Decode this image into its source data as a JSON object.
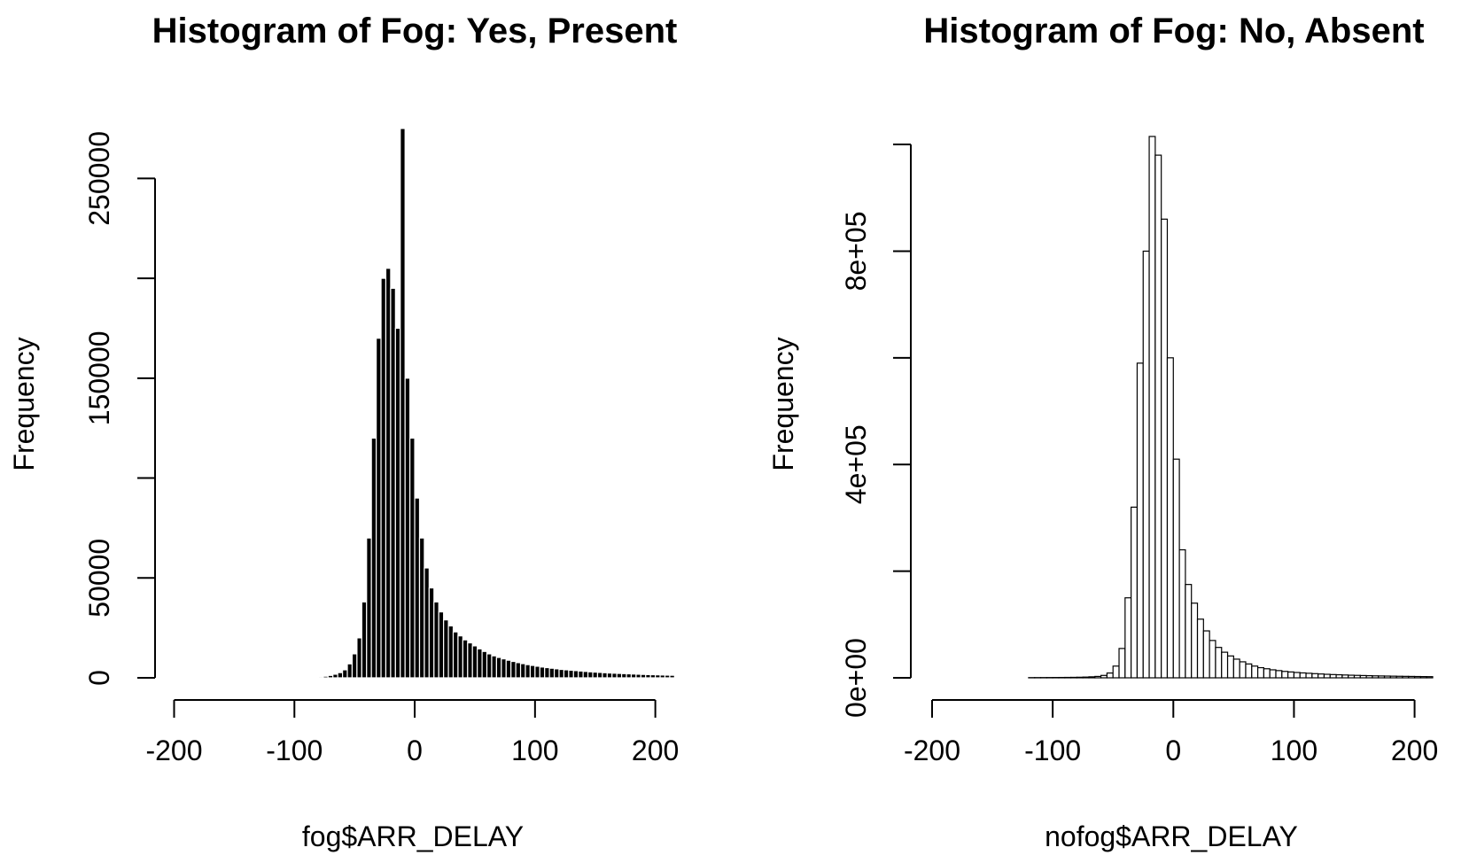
{
  "chart_data": [
    {
      "type": "bar",
      "title": "Histogram of Fog: Yes, Present",
      "xlabel": "fog$ARR_DELAY",
      "ylabel": "Frequency",
      "xlim": [
        -200,
        215
      ],
      "ylim": [
        0,
        275000
      ],
      "bin_width": 4,
      "x_ticks": [
        -200,
        -100,
        0,
        100,
        200
      ],
      "x_tick_labels": [
        "-200",
        "-100",
        "0",
        "100",
        "200"
      ],
      "y_ticks": [
        0,
        50000,
        100000,
        150000,
        200000,
        250000
      ],
      "y_tick_labels": [
        "0",
        "50000",
        "",
        "150000",
        "",
        "250000"
      ],
      "bar_color": "#000000",
      "bar_stroke": "#ffffff",
      "grid": false,
      "x": [
        -102,
        -98,
        -94,
        -90,
        -86,
        -82,
        -78,
        -74,
        -70,
        -66,
        -62,
        -58,
        -54,
        -50,
        -46,
        -42,
        -38,
        -34,
        -30,
        -26,
        -22,
        -18,
        -14,
        -10,
        -6,
        -2,
        2,
        6,
        10,
        14,
        18,
        22,
        26,
        30,
        34,
        38,
        42,
        46,
        50,
        54,
        58,
        62,
        66,
        70,
        74,
        78,
        82,
        86,
        90,
        94,
        98,
        102,
        106,
        110,
        114,
        118,
        122,
        126,
        130,
        134,
        138,
        142,
        146,
        150,
        154,
        158,
        162,
        166,
        170,
        174,
        178,
        182,
        186,
        190,
        194,
        198,
        202,
        206,
        210,
        214
      ],
      "values": [
        50,
        80,
        120,
        180,
        260,
        380,
        550,
        800,
        1200,
        1800,
        2600,
        4000,
        7000,
        12000,
        20000,
        38000,
        70000,
        120000,
        170000,
        200000,
        205000,
        195000,
        175000,
        275000,
        150000,
        120000,
        90000,
        70000,
        55000,
        45000,
        38000,
        33000,
        29000,
        26000,
        23000,
        21000,
        19000,
        17500,
        16000,
        14500,
        13200,
        12000,
        11000,
        10200,
        9500,
        8800,
        8200,
        7600,
        7100,
        6600,
        6200,
        5800,
        5400,
        5100,
        4800,
        4500,
        4200,
        4000,
        3800,
        3600,
        3400,
        3200,
        3000,
        2850,
        2700,
        2550,
        2400,
        2300,
        2200,
        2100,
        2000,
        1900,
        1800,
        1700,
        1620,
        1550,
        1480,
        1400,
        1340,
        1280
      ]
    },
    {
      "type": "bar",
      "title": "Histogram of Fog: No, Absent",
      "xlabel": "nofog$ARR_DELAY",
      "ylabel": "Frequency",
      "xlim": [
        -200,
        215
      ],
      "ylim": [
        0,
        1030000
      ],
      "bin_width": 5,
      "x_ticks": [
        -200,
        -100,
        0,
        100,
        200
      ],
      "x_tick_labels": [
        "-200",
        "-100",
        "0",
        "100",
        "200"
      ],
      "y_ticks": [
        0,
        200000,
        400000,
        600000,
        800000,
        1000000
      ],
      "y_tick_labels": [
        "0e+00",
        "",
        "4e+05",
        "",
        "8e+05",
        ""
      ],
      "bar_color": "#ffffff",
      "bar_stroke": "#000000",
      "grid": false,
      "x": [
        -117.5,
        -112.5,
        -107.5,
        -102.5,
        -97.5,
        -92.5,
        -87.5,
        -82.5,
        -77.5,
        -72.5,
        -67.5,
        -62.5,
        -57.5,
        -52.5,
        -47.5,
        -42.5,
        -37.5,
        -32.5,
        -27.5,
        -22.5,
        -17.5,
        -12.5,
        -7.5,
        -2.5,
        2.5,
        7.5,
        12.5,
        17.5,
        22.5,
        27.5,
        32.5,
        37.5,
        42.5,
        47.5,
        52.5,
        57.5,
        62.5,
        67.5,
        72.5,
        77.5,
        82.5,
        87.5,
        92.5,
        97.5,
        102.5,
        107.5,
        112.5,
        117.5,
        122.5,
        127.5,
        132.5,
        137.5,
        142.5,
        147.5,
        152.5,
        157.5,
        162.5,
        167.5,
        172.5,
        177.5,
        182.5,
        187.5,
        192.5,
        197.5,
        202.5,
        207.5,
        212.5
      ],
      "values": [
        400,
        450,
        500,
        560,
        630,
        700,
        800,
        900,
        1100,
        1400,
        1900,
        2600,
        4500,
        9000,
        22000,
        55000,
        150000,
        320000,
        590000,
        800000,
        1015000,
        980000,
        860000,
        600000,
        410000,
        240000,
        175000,
        140000,
        110000,
        88000,
        70000,
        57000,
        48000,
        41000,
        35000,
        30000,
        26000,
        22000,
        19000,
        17000,
        15000,
        13500,
        12000,
        11000,
        10000,
        9200,
        8500,
        7800,
        7200,
        6600,
        6100,
        5700,
        5300,
        4900,
        4600,
        4300,
        4000,
        3700,
        3500,
        3300,
        3100,
        2900,
        2750,
        2600,
        2450,
        2300,
        2200
      ]
    }
  ]
}
